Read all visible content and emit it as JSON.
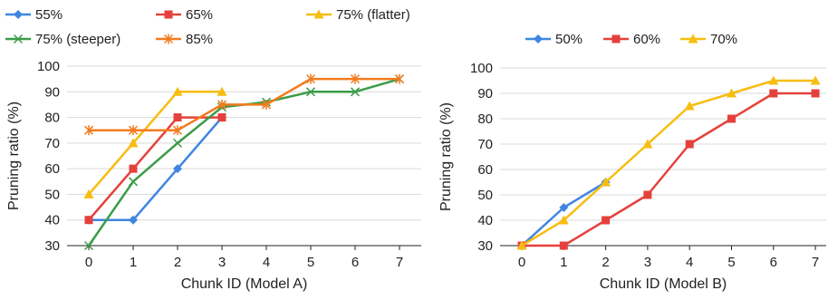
{
  "chart_data": [
    {
      "type": "line",
      "xlabel": "Chunk ID (Model A)",
      "ylabel": "Pruning ratio (%)",
      "x": [
        0,
        1,
        2,
        3,
        4,
        5,
        6,
        7
      ],
      "ylim": [
        30,
        100
      ],
      "yticks": [
        30,
        40,
        50,
        60,
        70,
        80,
        90,
        100
      ],
      "grid": "horizontal",
      "legend_position": "top-left",
      "series": [
        {
          "name": "55%",
          "color": "#3f86e0",
          "marker": "diamond",
          "x": [
            0,
            1,
            2,
            3
          ],
          "values": [
            40,
            40,
            60,
            80
          ]
        },
        {
          "name": "65%",
          "color": "#e5413c",
          "marker": "square",
          "x": [
            0,
            1,
            2,
            3
          ],
          "values": [
            40,
            60,
            80,
            80
          ]
        },
        {
          "name": "75% (flatter)",
          "color": "#f7bd10",
          "marker": "triangle",
          "x": [
            0,
            1,
            2,
            3
          ],
          "values": [
            50,
            70,
            90,
            90
          ]
        },
        {
          "name": "75% (steeper)",
          "color": "#3a9c47",
          "marker": "x",
          "x": [
            0,
            1,
            2,
            3,
            4,
            5,
            6,
            7
          ],
          "values": [
            30,
            55,
            70,
            84,
            86,
            90,
            90,
            95
          ]
        },
        {
          "name": "85%",
          "color": "#f27b1e",
          "marker": "asterisk",
          "x": [
            0,
            1,
            2,
            3,
            4,
            5,
            6,
            7
          ],
          "values": [
            75,
            75,
            75,
            85,
            85,
            95,
            95,
            95
          ]
        }
      ]
    },
    {
      "type": "line",
      "xlabel": "Chunk ID (Model B)",
      "ylabel": "Pruning ratio (%)",
      "x": [
        0,
        1,
        2,
        3,
        4,
        5,
        6,
        7
      ],
      "ylim": [
        30,
        100
      ],
      "yticks": [
        30,
        40,
        50,
        60,
        70,
        80,
        90,
        100
      ],
      "grid": "horizontal",
      "legend_position": "top-center",
      "series": [
        {
          "name": "50%",
          "color": "#3f86e0",
          "marker": "diamond",
          "x": [
            0,
            1,
            2
          ],
          "values": [
            30,
            45,
            55
          ]
        },
        {
          "name": "60%",
          "color": "#e5413c",
          "marker": "square",
          "x": [
            0,
            1,
            2,
            3,
            4,
            5,
            6,
            7
          ],
          "values": [
            30,
            30,
            40,
            50,
            70,
            80,
            90,
            90
          ]
        },
        {
          "name": "70%",
          "color": "#f7bd10",
          "marker": "triangle",
          "x": [
            0,
            1,
            2,
            3,
            4,
            5,
            6,
            7
          ],
          "values": [
            30,
            40,
            55,
            70,
            85,
            90,
            95,
            95
          ]
        }
      ]
    }
  ]
}
